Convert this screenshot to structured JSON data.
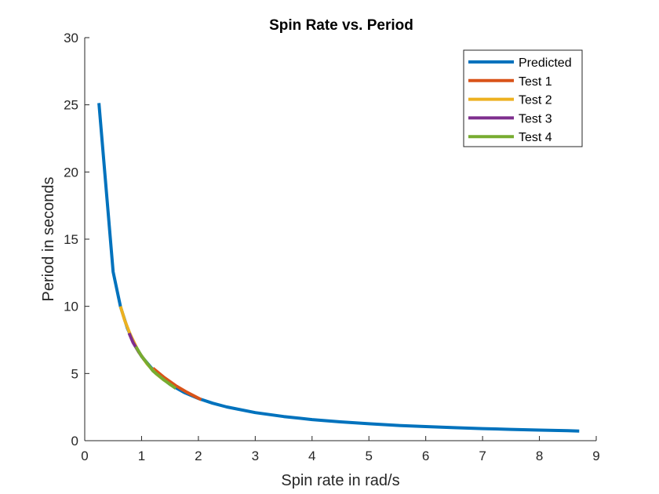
{
  "chart_data": {
    "type": "line",
    "title": "Spin Rate vs. Period",
    "xlabel": "Spin rate in rad/s",
    "ylabel": "Period in seconds",
    "xlim": [
      0,
      9
    ],
    "ylim": [
      0,
      30
    ],
    "xticks": [
      0,
      1,
      2,
      3,
      4,
      5,
      6,
      7,
      8,
      9
    ],
    "yticks": [
      0,
      5,
      10,
      15,
      20,
      25,
      30
    ],
    "grid": false,
    "legend_position": "top-right",
    "series": [
      {
        "name": "Predicted",
        "color": "#0072BD",
        "x": [
          0.25,
          0.5,
          0.63,
          0.75,
          0.88,
          1.0,
          1.25,
          1.5,
          1.75,
          2.0,
          2.25,
          2.5,
          3.0,
          3.5,
          4.0,
          4.5,
          5.0,
          5.5,
          6.0,
          6.5,
          7.0,
          7.5,
          8.0,
          8.5,
          8.7
        ],
        "y": [
          25.13,
          12.57,
          9.97,
          8.38,
          7.14,
          6.28,
          5.03,
          4.19,
          3.59,
          3.14,
          2.79,
          2.51,
          2.09,
          1.8,
          1.57,
          1.4,
          1.26,
          1.14,
          1.05,
          0.97,
          0.9,
          0.84,
          0.79,
          0.74,
          0.72
        ]
      },
      {
        "name": "Test 1",
        "color": "#D95319",
        "x": [
          1.2,
          1.4,
          1.6,
          1.8,
          2.05
        ],
        "y": [
          5.4,
          4.7,
          4.1,
          3.6,
          3.05
        ]
      },
      {
        "name": "Test 2",
        "color": "#EDB120",
        "x": [
          0.63,
          0.7,
          0.8,
          0.95,
          1.1,
          1.25,
          1.4
        ],
        "y": [
          10.0,
          9.0,
          7.9,
          6.6,
          5.7,
          5.0,
          4.5
        ]
      },
      {
        "name": "Test 3",
        "color": "#7E2F8E",
        "x": [
          0.78,
          0.85,
          0.95,
          1.05
        ],
        "y": [
          8.0,
          7.3,
          6.6,
          6.0
        ]
      },
      {
        "name": "Test 4",
        "color": "#77AC30",
        "x": [
          0.9,
          1.0,
          1.2,
          1.4,
          1.6
        ],
        "y": [
          7.0,
          6.3,
          5.2,
          4.5,
          3.9
        ]
      }
    ]
  }
}
